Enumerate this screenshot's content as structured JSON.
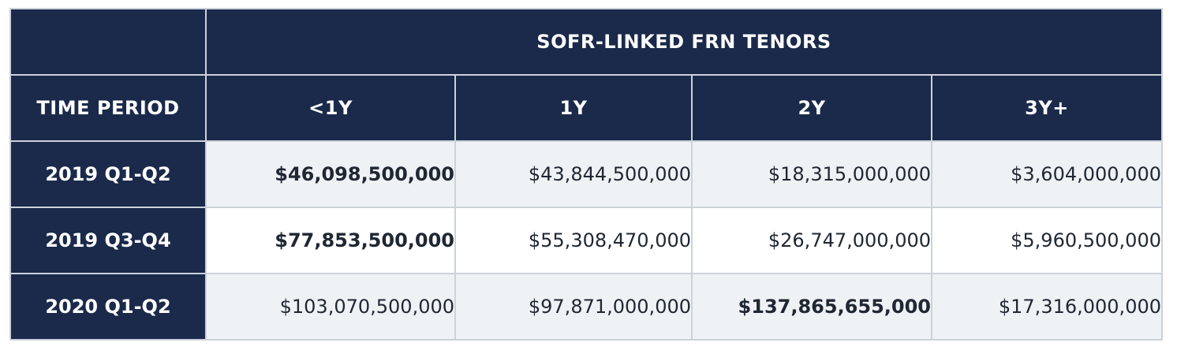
{
  "table": {
    "corner_label": "",
    "group_header": "SOFR-LINKED FRN TENORS",
    "row_header_label": "TIME PERIOD",
    "columns": [
      "<1Y",
      "1Y",
      "2Y",
      "3Y+"
    ],
    "rows": [
      {
        "period": "2019 Q1-Q2",
        "values": [
          "$46,098,500,000",
          "$43,844,500,000",
          "$18,315,000,000",
          "$3,604,000,000"
        ],
        "bold_index": 0
      },
      {
        "period": "2019 Q3-Q4",
        "values": [
          "$77,853,500,000",
          "$55,308,470,000",
          "$26,747,000,000",
          "$5,960,500,000"
        ],
        "bold_index": 0
      },
      {
        "period": "2020 Q1-Q2",
        "values": [
          "$103,070,500,000",
          "$97,871,000,000",
          "$137,865,655,000",
          "$17,316,000,000"
        ],
        "bold_index": 2
      }
    ]
  },
  "colors": {
    "header_bg": "#1b2a4a",
    "header_text": "#ffffff",
    "shaded_row_bg": "#eff2f5",
    "plain_row_bg": "#ffffff",
    "border": "#cbd2da",
    "value_text": "#1f2733"
  }
}
